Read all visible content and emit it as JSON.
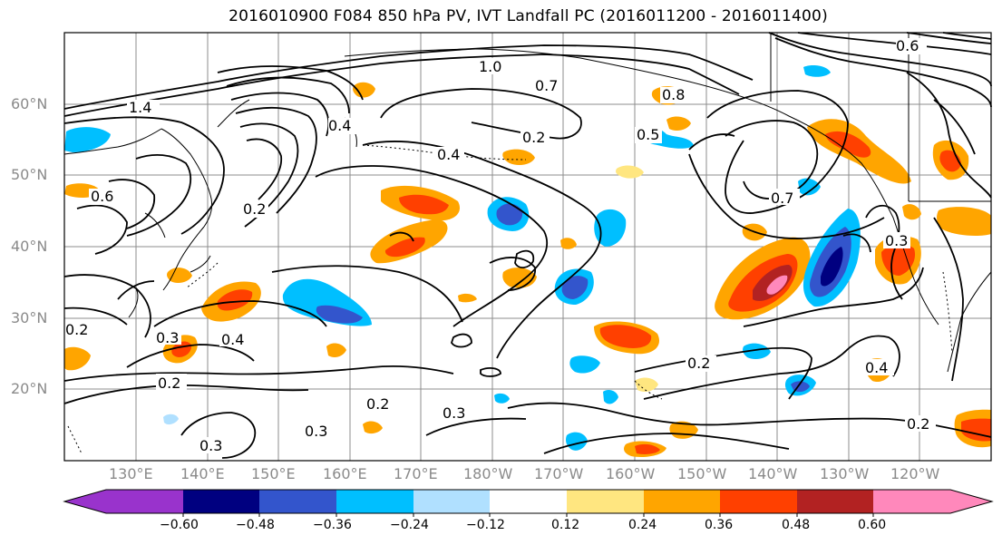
{
  "title": "2016010900 F084 850 hPa PV, IVT Landfall PC (2016011200 - 2016011400)",
  "lat_labels": [
    "60°N",
    "50°N",
    "40°N",
    "30°N",
    "20°N"
  ],
  "lon_labels": [
    "130°E",
    "140°E",
    "150°E",
    "160°E",
    "170°E",
    "180°W",
    "170°W",
    "160°W",
    "150°W",
    "140°W",
    "130°W",
    "120°W"
  ],
  "colorbar": {
    "ticks": [
      "−0.60",
      "−0.48",
      "−0.36",
      "−0.24",
      "−0.12",
      "0.12",
      "0.24",
      "0.36",
      "0.48",
      "0.60"
    ],
    "colors": [
      "#9933cc",
      "#000080",
      "#3355cc",
      "#00bfff",
      "#b0e0ff",
      "#ffffff",
      "#ffe680",
      "#ffa500",
      "#ff4000",
      "#b22222",
      "#ff88bb"
    ]
  },
  "contour_labels": [
    "1.4",
    "1.0",
    "0.7",
    "0.4",
    "0.2",
    "0.5",
    "0.6",
    "0.7",
    "0.8",
    "0.6",
    "0.4",
    "0.2",
    "0.3",
    "0.4",
    "0.2",
    "0.2",
    "0.3",
    "0.3",
    "0.3",
    "0.2",
    "0.4",
    "0.2",
    "0.3",
    "0.2"
  ]
}
